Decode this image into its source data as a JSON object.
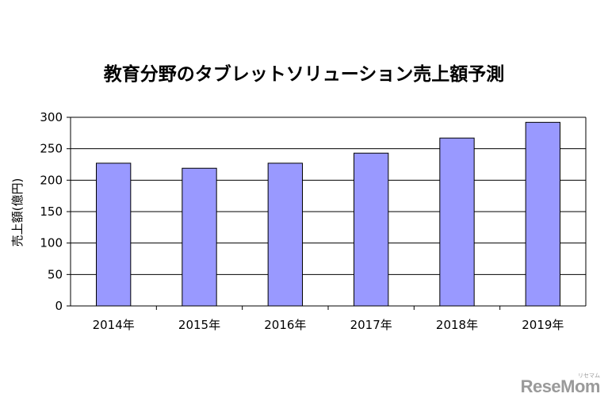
{
  "chart_data": {
    "type": "bar",
    "title": "教育分野のタブレットソリューション売上額予測",
    "xlabel": "",
    "ylabel": "売上額(億円)",
    "categories": [
      "2014年",
      "2015年",
      "2016年",
      "2017年",
      "2018年",
      "2019年"
    ],
    "values": [
      227,
      219,
      227,
      243,
      267,
      292
    ],
    "ylim": [
      0,
      300
    ],
    "yticks": [
      0,
      50,
      100,
      150,
      200,
      250,
      300
    ],
    "grid": true,
    "legend": "none",
    "colors": {
      "bar": "#9999ff",
      "bar_stroke": "#000000",
      "grid": "#000000",
      "axis": "#000000"
    }
  },
  "watermark": {
    "text": "ReseMom",
    "subtext": "リセマム"
  }
}
